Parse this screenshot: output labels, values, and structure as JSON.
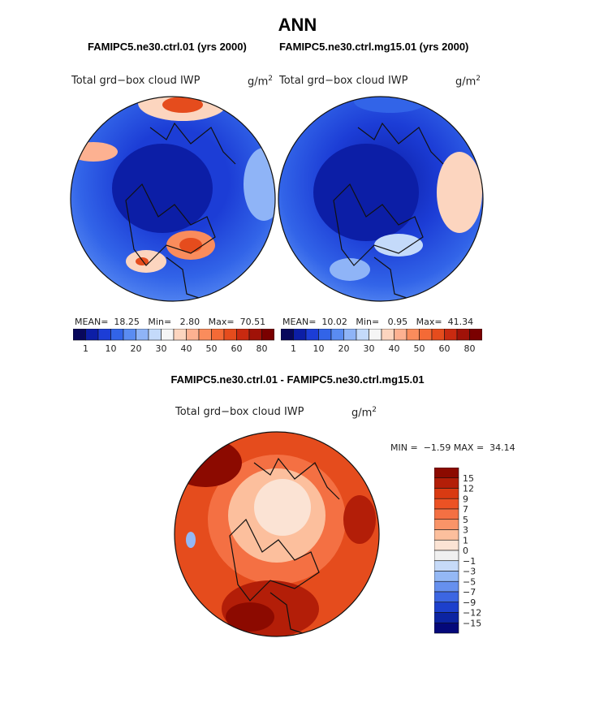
{
  "title": "ANN",
  "chart_data": [
    {
      "type": "heatmap",
      "projection": "polar-stereographic",
      "case_title": "FAMIPC5.ne30.ctrl.01 (yrs 2000)",
      "variable_label": "Total grd−box cloud IWP",
      "units": "g/m",
      "units_exponent": "2",
      "stats": {
        "mean_label": "MEAN=",
        "mean": "18.25",
        "min_label": "Min=",
        "min": "2.80",
        "max_label": "Max=",
        "max": "70.51"
      },
      "colorbar": {
        "ticks": [
          "1",
          "10",
          "20",
          "30",
          "40",
          "50",
          "60",
          "80"
        ],
        "colors": [
          "#08085c",
          "#0c1ea6",
          "#1c3dd6",
          "#3264e8",
          "#5a8cf2",
          "#8fb4f7",
          "#c4dafa",
          "#f5f5f5",
          "#fcd5bf",
          "#fdb191",
          "#fa8c5c",
          "#f46a36",
          "#e54c1d",
          "#c92a10",
          "#a01208",
          "#7a0000"
        ]
      }
    },
    {
      "type": "heatmap",
      "projection": "polar-stereographic",
      "case_title": "FAMIPC5.ne30.ctrl.mg15.01 (yrs 2000)",
      "variable_label": "Total grd−box cloud IWP",
      "units": "g/m",
      "units_exponent": "2",
      "stats": {
        "mean_label": "MEAN=",
        "mean": "10.02",
        "min_label": "Min=",
        "min": "0.95",
        "max_label": "Max=",
        "max": "41.34"
      },
      "colorbar": {
        "ticks": [
          "1",
          "10",
          "20",
          "30",
          "40",
          "50",
          "60",
          "80"
        ],
        "colors": [
          "#08085c",
          "#0c1ea6",
          "#1c3dd6",
          "#3264e8",
          "#5a8cf2",
          "#8fb4f7",
          "#c4dafa",
          "#f5f5f5",
          "#fcd5bf",
          "#fdb191",
          "#fa8c5c",
          "#f46a36",
          "#e54c1d",
          "#c92a10",
          "#a01208",
          "#7a0000"
        ]
      }
    },
    {
      "type": "heatmap",
      "projection": "polar-stereographic",
      "case_title": "FAMIPC5.ne30.ctrl.01 - FAMIPC5.ne30.ctrl.mg15.01",
      "variable_label": "Total grd−box cloud IWP",
      "units": "g/m",
      "units_exponent": "2",
      "stats": {
        "min_label": "MIN =",
        "min": "−1.59",
        "max_label": "MAX =",
        "max": "34.14"
      },
      "colorbar": {
        "ticks": [
          "15",
          "12",
          "9",
          "7",
          "5",
          "3",
          "1",
          "0",
          "−1",
          "−3",
          "−5",
          "−7",
          "−9",
          "−12",
          "−15"
        ],
        "colors": [
          "#8c0a00",
          "#b31e08",
          "#d93a12",
          "#ec5224",
          "#f47043",
          "#f99468",
          "#fcbf9d",
          "#fbe3d4",
          "#f0f0f0",
          "#c6daf8",
          "#94b8f5",
          "#6690ee",
          "#3c66e2",
          "#1d40cc",
          "#0c24a2",
          "#04087a"
        ]
      }
    }
  ]
}
